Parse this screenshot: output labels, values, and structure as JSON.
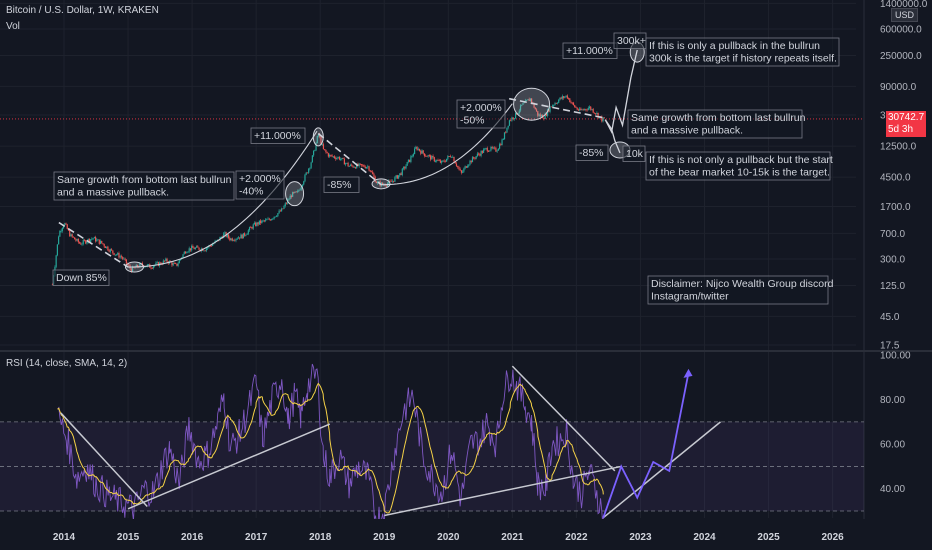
{
  "header": {
    "symbol_line": "Bitcoin / U.S. Dollar, 1W, KRAKEN",
    "vol_label": "Vol",
    "rsi_label": "RSI (14, close, SMA, 14, 2)"
  },
  "price_tag": {
    "value": "30742.7",
    "countdown": "5d 3h"
  },
  "currency": "USD",
  "colors": {
    "background": "#131722",
    "up": "#26a69a",
    "down": "#ef5350",
    "rsi": "#7e57c2",
    "rsi_ma": "#f5d247",
    "projection": "#7b61ff",
    "price_line": "#f23645"
  },
  "chart_data": [
    {
      "type": "candlestick",
      "price_scale": "log",
      "price_ticks": [
        "1400000.0",
        "600000.0",
        "250000.0",
        "90000.0",
        "35000.0",
        "12500.0",
        "4500.0",
        "1700.0",
        "700.0",
        "300.0",
        "125.0",
        "45.0",
        "17.5"
      ],
      "x_ticks": [
        "2014",
        "2015",
        "2016",
        "2017",
        "2018",
        "2019",
        "2020",
        "2021",
        "2022",
        "2023",
        "2024",
        "2025",
        "2026"
      ],
      "price_path": [
        [
          2013.82,
          130
        ],
        [
          2013.92,
          700
        ],
        [
          2014.0,
          1000
        ],
        [
          2014.1,
          650
        ],
        [
          2014.25,
          500
        ],
        [
          2014.45,
          600
        ],
        [
          2014.6,
          500
        ],
        [
          2014.75,
          380
        ],
        [
          2014.9,
          320
        ],
        [
          2015.05,
          210
        ],
        [
          2015.2,
          250
        ],
        [
          2015.35,
          235
        ],
        [
          2015.5,
          260
        ],
        [
          2015.6,
          285
        ],
        [
          2015.75,
          240
        ],
        [
          2015.9,
          400
        ],
        [
          2016.0,
          430
        ],
        [
          2016.2,
          420
        ],
        [
          2016.4,
          550
        ],
        [
          2016.5,
          690
        ],
        [
          2016.6,
          580
        ],
        [
          2016.8,
          650
        ],
        [
          2016.95,
          900
        ],
        [
          2017.05,
          1000
        ],
        [
          2017.2,
          1100
        ],
        [
          2017.4,
          1500
        ],
        [
          2017.55,
          2500
        ],
        [
          2017.65,
          2700
        ],
        [
          2017.75,
          4300
        ],
        [
          2017.85,
          7000
        ],
        [
          2017.93,
          13000
        ],
        [
          2017.97,
          19000
        ],
        [
          2018.05,
          11000
        ],
        [
          2018.15,
          9000
        ],
        [
          2018.3,
          8500
        ],
        [
          2018.45,
          6500
        ],
        [
          2018.6,
          6500
        ],
        [
          2018.75,
          6400
        ],
        [
          2018.88,
          3800
        ],
        [
          2018.97,
          3500
        ],
        [
          2019.1,
          3800
        ],
        [
          2019.25,
          5000
        ],
        [
          2019.4,
          8000
        ],
        [
          2019.5,
          12000
        ],
        [
          2019.6,
          10000
        ],
        [
          2019.75,
          8300
        ],
        [
          2019.9,
          7200
        ],
        [
          2020.05,
          9500
        ],
        [
          2020.2,
          5000
        ],
        [
          2020.3,
          7000
        ],
        [
          2020.45,
          9300
        ],
        [
          2020.6,
          11500
        ],
        [
          2020.75,
          11000
        ],
        [
          2020.85,
          15500
        ],
        [
          2020.95,
          29000
        ],
        [
          2021.05,
          35000
        ],
        [
          2021.15,
          48000
        ],
        [
          2021.28,
          60000
        ],
        [
          2021.4,
          35000
        ],
        [
          2021.5,
          33000
        ],
        [
          2021.6,
          47000
        ],
        [
          2021.75,
          60000
        ],
        [
          2021.85,
          66000
        ],
        [
          2021.95,
          48000
        ],
        [
          2022.05,
          40000
        ],
        [
          2022.2,
          45000
        ],
        [
          2022.3,
          38000
        ],
        [
          2022.4,
          30000
        ],
        [
          2022.44,
          30742
        ]
      ],
      "annotations": [
        {
          "id": "a1",
          "text": [
            "Same growth from bottom last bullrun",
            "and a massive pullback."
          ]
        },
        {
          "id": "a2",
          "text": [
            "Down 85%"
          ]
        },
        {
          "id": "a3",
          "text": [
            "+2.000%",
            "-40%"
          ]
        },
        {
          "id": "a4",
          "text": [
            "+11.000%"
          ]
        },
        {
          "id": "a5",
          "text": [
            "-85%"
          ]
        },
        {
          "id": "a6",
          "text": [
            "+2.000%",
            "-50%"
          ]
        },
        {
          "id": "a7",
          "text": [
            "+11.000%"
          ]
        },
        {
          "id": "a8",
          "text": [
            "300k+"
          ]
        },
        {
          "id": "a9",
          "text": [
            "If this is only a pullback in the bullrun",
            "300k is the target if history repeats itself."
          ]
        },
        {
          "id": "a10",
          "text": [
            "Same growth from bottom last bullrun",
            "and a massive pullback."
          ]
        },
        {
          "id": "a11",
          "text": [
            "-85%"
          ]
        },
        {
          "id": "a12",
          "text": [
            "10k"
          ]
        },
        {
          "id": "a13",
          "text": [
            "If this is not only a pullback but the start",
            "of the bear market 10-15k is the target."
          ]
        },
        {
          "id": "a14",
          "text": [
            "Disclaimer: Nijco Wealth Group discord",
            "Instagram/twitter"
          ]
        }
      ],
      "projection_up": [
        [
          2022.45,
          30000
        ],
        [
          2022.55,
          20000
        ],
        [
          2022.62,
          45000
        ],
        [
          2022.72,
          25000
        ],
        [
          2022.85,
          120000
        ],
        [
          2022.95,
          300000
        ]
      ],
      "projection_down": [
        [
          2022.45,
          30000
        ],
        [
          2022.55,
          22000
        ],
        [
          2022.6,
          15000
        ],
        [
          2022.68,
          10000
        ]
      ]
    },
    {
      "type": "line",
      "title": "RSI (14, close, SMA, 14, 2)",
      "y_ticks": [
        "100.00",
        "80.00",
        "60.00",
        "40.00"
      ],
      "ylim": [
        20,
        100
      ],
      "bands": [
        30,
        50,
        70
      ],
      "rsi": [
        [
          2013.9,
          73
        ],
        [
          2014.05,
          62
        ],
        [
          2014.2,
          45
        ],
        [
          2014.35,
          50
        ],
        [
          2014.5,
          42
        ],
        [
          2014.65,
          38
        ],
        [
          2014.8,
          35
        ],
        [
          2014.95,
          33
        ],
        [
          2015.1,
          31
        ],
        [
          2015.25,
          40
        ],
        [
          2015.4,
          38
        ],
        [
          2015.55,
          52
        ],
        [
          2015.65,
          58
        ],
        [
          2015.8,
          42
        ],
        [
          2015.95,
          68
        ],
        [
          2016.1,
          52
        ],
        [
          2016.25,
          56
        ],
        [
          2016.4,
          70
        ],
        [
          2016.5,
          82
        ],
        [
          2016.6,
          58
        ],
        [
          2016.75,
          65
        ],
        [
          2016.9,
          78
        ],
        [
          2017.0,
          88
        ],
        [
          2017.1,
          62
        ],
        [
          2017.25,
          80
        ],
        [
          2017.4,
          90
        ],
        [
          2017.5,
          70
        ],
        [
          2017.6,
          82
        ],
        [
          2017.7,
          72
        ],
        [
          2017.8,
          86
        ],
        [
          2017.95,
          92
        ],
        [
          2018.05,
          55
        ],
        [
          2018.15,
          45
        ],
        [
          2018.3,
          55
        ],
        [
          2018.45,
          42
        ],
        [
          2018.6,
          50
        ],
        [
          2018.75,
          45
        ],
        [
          2018.88,
          26
        ],
        [
          2019.0,
          30
        ],
        [
          2019.15,
          55
        ],
        [
          2019.3,
          75
        ],
        [
          2019.45,
          82
        ],
        [
          2019.6,
          55
        ],
        [
          2019.75,
          45
        ],
        [
          2019.9,
          38
        ],
        [
          2020.05,
          58
        ],
        [
          2020.2,
          35
        ],
        [
          2020.35,
          60
        ],
        [
          2020.5,
          62
        ],
        [
          2020.6,
          70
        ],
        [
          2020.75,
          60
        ],
        [
          2020.85,
          82
        ],
        [
          2020.97,
          92
        ],
        [
          2021.08,
          86
        ],
        [
          2021.2,
          78
        ],
        [
          2021.3,
          70
        ],
        [
          2021.4,
          42
        ],
        [
          2021.52,
          40
        ],
        [
          2021.62,
          60
        ],
        [
          2021.75,
          62
        ],
        [
          2021.85,
          66
        ],
        [
          2021.95,
          44
        ],
        [
          2022.08,
          38
        ],
        [
          2022.2,
          48
        ],
        [
          2022.3,
          40
        ],
        [
          2022.42,
          27
        ]
      ],
      "rsi_projection": [
        [
          2022.42,
          27
        ],
        [
          2022.7,
          50
        ],
        [
          2022.95,
          36
        ],
        [
          2023.2,
          52
        ],
        [
          2023.45,
          48
        ],
        [
          2023.75,
          92
        ]
      ]
    }
  ]
}
